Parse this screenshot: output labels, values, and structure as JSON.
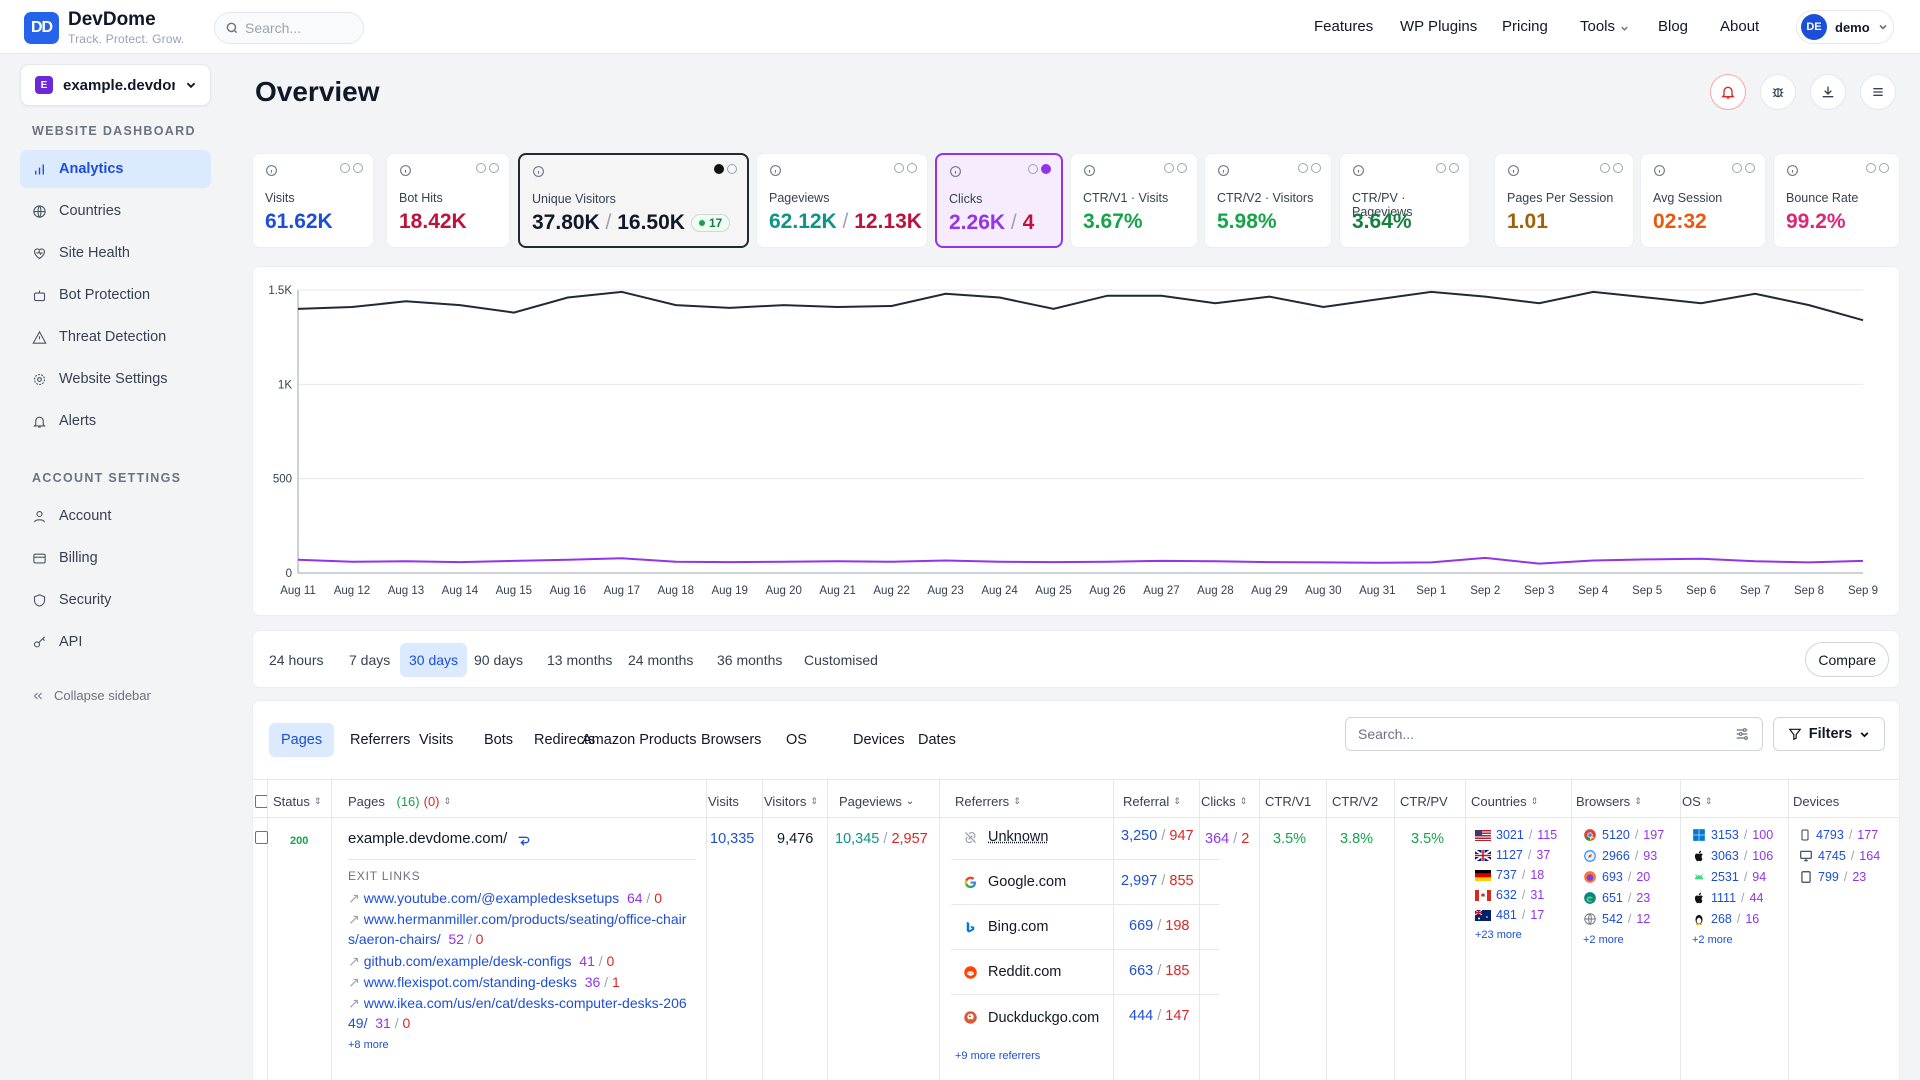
{
  "brand": {
    "logo": "DD",
    "name": "DevDome",
    "tagline": "Track. Protect. Grow."
  },
  "search": {
    "placeholder": "Search..."
  },
  "nav": {
    "items": [
      "Features",
      "WP Plugins",
      "Pricing",
      "Tools",
      "Blog",
      "About"
    ],
    "user_initials": "DE",
    "user_name": "demo"
  },
  "site": {
    "badge": "E",
    "name": "example.devdome.com"
  },
  "sidebar": {
    "website_heading": "WEBSITE DASHBOARD",
    "website_items": [
      {
        "label": "Analytics",
        "icon": "bar-chart-icon"
      },
      {
        "label": "Countries",
        "icon": "globe-icon"
      },
      {
        "label": "Site Health",
        "icon": "heart-pulse-icon"
      },
      {
        "label": "Bot Protection",
        "icon": "bot-icon"
      },
      {
        "label": "Threat Detection",
        "icon": "warning-icon"
      },
      {
        "label": "Website Settings",
        "icon": "gear-icon"
      },
      {
        "label": "Alerts",
        "icon": "bell-icon"
      }
    ],
    "account_heading": "ACCOUNT SETTINGS",
    "account_items": [
      {
        "label": "Account",
        "icon": "user-icon"
      },
      {
        "label": "Billing",
        "icon": "credit-card-icon"
      },
      {
        "label": "Security",
        "icon": "shield-icon"
      },
      {
        "label": "API",
        "icon": "key-icon"
      }
    ],
    "collapse_label": "Collapse sidebar"
  },
  "page": {
    "title": "Overview"
  },
  "metrics": [
    {
      "label": "Visits",
      "value": "61.62K",
      "color": "#1d4ed8"
    },
    {
      "label": "Bot Hits",
      "value": "18.42K",
      "color": "#be123c"
    },
    {
      "label": "Unique Visitors",
      "value": "37.80K",
      "value2": "16.50K",
      "badge": "17",
      "color": "#111827",
      "color2": "#111827"
    },
    {
      "label": "Pageviews",
      "value": "62.12K",
      "value2": "12.13K",
      "color": "#0d9488",
      "color2": "#be123c"
    },
    {
      "label": "Clicks",
      "value": "2.26K",
      "value2": "4",
      "color": "#9333ea",
      "color2": "#be123c"
    },
    {
      "label": "CTR/V1 · Visits",
      "value": "3.67%",
      "color": "#16a34a"
    },
    {
      "label": "CTR/V2 · Visitors",
      "value": "5.98%",
      "color": "#16a34a"
    },
    {
      "label": "CTR/PV · Pageviews",
      "value": "3.64%",
      "color": "#15803d"
    },
    {
      "label": "Pages Per Session",
      "value": "1.01",
      "color": "#a16207"
    },
    {
      "label": "Avg Session",
      "value": "02:32",
      "color": "#ea580c"
    },
    {
      "label": "Bounce Rate",
      "value": "99.2%",
      "color": "#db2777"
    }
  ],
  "chart_data": {
    "type": "line",
    "x": [
      "Aug 11",
      "Aug 12",
      "Aug 13",
      "Aug 14",
      "Aug 15",
      "Aug 16",
      "Aug 17",
      "Aug 18",
      "Aug 19",
      "Aug 20",
      "Aug 21",
      "Aug 22",
      "Aug 23",
      "Aug 24",
      "Aug 25",
      "Aug 26",
      "Aug 27",
      "Aug 28",
      "Aug 29",
      "Aug 30",
      "Aug 31",
      "Sep 1",
      "Sep 2",
      "Sep 3",
      "Sep 4",
      "Sep 5",
      "Sep 6",
      "Sep 7",
      "Sep 8",
      "Sep 9"
    ],
    "series": [
      {
        "values": [
          1400,
          1410,
          1440,
          1420,
          1380,
          1460,
          1490,
          1420,
          1405,
          1420,
          1410,
          1415,
          1480,
          1460,
          1400,
          1470,
          1470,
          1430,
          1465,
          1410,
          1450,
          1490,
          1465,
          1430,
          1490,
          1460,
          1430,
          1480,
          1420,
          1340
        ],
        "color": "#1f2937"
      },
      {
        "values": [
          70,
          60,
          62,
          58,
          64,
          70,
          78,
          60,
          58,
          60,
          62,
          60,
          66,
          60,
          58,
          60,
          64,
          62,
          58,
          56,
          54,
          56,
          80,
          50,
          66,
          72,
          76,
          62,
          56,
          64
        ],
        "color": "#9333ea"
      }
    ],
    "y_ticks": [
      "1.5K",
      "1K",
      "500",
      "0"
    ],
    "ylim": [
      0,
      1500
    ],
    "grid": true
  },
  "ranges": {
    "items": [
      "24 hours",
      "7 days",
      "30 days",
      "90 days",
      "13 months",
      "24 months",
      "36 months",
      "Customised"
    ],
    "active": "30 days",
    "compare_label": "Compare"
  },
  "tabs": {
    "items": [
      "Pages",
      "Referrers",
      "Visits",
      "Bots",
      "Redirects",
      "Amazon Products",
      "Browsers",
      "OS",
      "Devices",
      "Dates"
    ],
    "active": "Pages"
  },
  "table": {
    "search_placeholder": "Search...",
    "filters_label": "Filters",
    "headers": {
      "status": "Status",
      "pages": "Pages",
      "pages_count": "(16)",
      "pages_err": "(0)",
      "visits": "Visits",
      "visitors": "Visitors",
      "pageviews": "Pageviews",
      "referrers": "Referrers",
      "referral": "Referral",
      "clicks": "Clicks",
      "ctr_v1": "CTR/V1",
      "ctr_v2": "CTR/V2",
      "ctr_pv": "CTR/PV",
      "countries": "Countries",
      "browsers": "Browsers",
      "os": "OS",
      "devices": "Devices"
    },
    "row": {
      "status": "200",
      "page": "example.devdome.com/",
      "visits": "10,335",
      "visitors": "9,476",
      "pageviews": "10,345",
      "pageviews_err": "2,957",
      "clicks": "364",
      "clicks_err": "2",
      "ctr_v1": "3.5%",
      "ctr_v2": "3.8%",
      "ctr_pv": "3.5%",
      "exit_title": "EXIT LINKS",
      "exit_links": [
        {
          "url": "www.youtube.com/@exampledesksetups",
          "a": "64",
          "b": "0"
        },
        {
          "url": "www.hermanmiller.com/products/seating/office-chairs/aeron-chairs/",
          "a": "52",
          "b": "0"
        },
        {
          "url": "github.com/example/desk-configs",
          "a": "41",
          "b": "0"
        },
        {
          "url": "www.flexispot.com/standing-desks",
          "a": "36",
          "b": "1"
        },
        {
          "url": "www.ikea.com/us/en/cat/desks-computer-desks-20649/",
          "a": "31",
          "b": "0"
        }
      ],
      "exit_more": "+8 more",
      "referrers": [
        {
          "name": "Unknown",
          "icon": "unknown-link-icon",
          "a": "3,250",
          "b": "947"
        },
        {
          "name": "Google.com",
          "icon": "google-icon",
          "a": "2,997",
          "b": "855"
        },
        {
          "name": "Bing.com",
          "icon": "bing-icon",
          "a": "669",
          "b": "198"
        },
        {
          "name": "Reddit.com",
          "icon": "reddit-icon",
          "a": "663",
          "b": "185"
        },
        {
          "name": "Duckduckgo.com",
          "icon": "duckduckgo-icon",
          "a": "444",
          "b": "147"
        }
      ],
      "ref_more": "+9 more referrers",
      "countries": [
        {
          "flag": "us-flag-icon",
          "a": "3021",
          "b": "115"
        },
        {
          "flag": "uk-flag-icon",
          "a": "1127",
          "b": "37"
        },
        {
          "flag": "de-flag-icon",
          "a": "737",
          "b": "18"
        },
        {
          "flag": "ca-flag-icon",
          "a": "632",
          "b": "31"
        },
        {
          "flag": "au-flag-icon",
          "a": "481",
          "b": "17"
        }
      ],
      "countries_more": "+23 more",
      "browsers": [
        {
          "icon": "chrome-icon",
          "a": "5120",
          "b": "197"
        },
        {
          "icon": "safari-icon",
          "a": "2966",
          "b": "93"
        },
        {
          "icon": "firefox-icon",
          "a": "693",
          "b": "20"
        },
        {
          "icon": "edge-icon",
          "a": "651",
          "b": "23"
        },
        {
          "icon": "web-icon",
          "a": "542",
          "b": "12"
        }
      ],
      "browsers_more": "+2 more",
      "os": [
        {
          "icon": "windows-icon",
          "a": "3153",
          "b": "100"
        },
        {
          "icon": "apple-icon",
          "a": "3063",
          "b": "106"
        },
        {
          "icon": "android-icon",
          "a": "2531",
          "b": "94"
        },
        {
          "icon": "apple-icon",
          "a": "1111",
          "b": "44"
        },
        {
          "icon": "linux-icon",
          "a": "268",
          "b": "16"
        }
      ],
      "os_more": "+2 more",
      "devices": [
        {
          "icon": "mobile-icon",
          "a": "4793",
          "b": "177"
        },
        {
          "icon": "desktop-icon",
          "a": "4745",
          "b": "164"
        },
        {
          "icon": "tablet-icon",
          "a": "799",
          "b": "23"
        }
      ]
    }
  }
}
